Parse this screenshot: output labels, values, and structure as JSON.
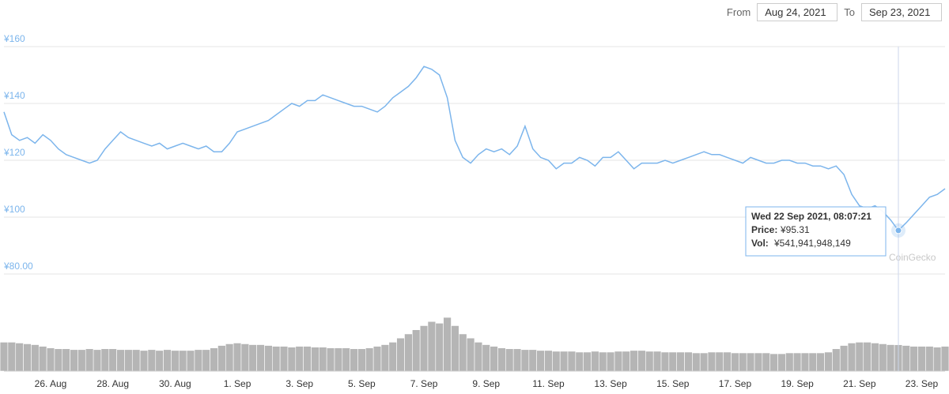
{
  "date_range": {
    "from_label": "From",
    "from": "Aug 24, 2021",
    "to_label": "To",
    "to": "Sep 23, 2021"
  },
  "chart_data": {
    "type": "line",
    "color": "#7cb5ec",
    "grid": true,
    "ylim": [
      80,
      160
    ],
    "yticks": [
      {
        "value": 80,
        "label": "¥80.00"
      },
      {
        "value": 100,
        "label": "¥100"
      },
      {
        "value": 120,
        "label": "¥120"
      },
      {
        "value": 140,
        "label": "¥140"
      },
      {
        "value": 160,
        "label": "¥160"
      }
    ],
    "categories": [
      null,
      null,
      null,
      null,
      null,
      null,
      "26. Aug",
      null,
      null,
      null,
      null,
      null,
      null,
      null,
      "28. Aug",
      null,
      null,
      null,
      null,
      null,
      null,
      null,
      "30. Aug",
      null,
      null,
      null,
      null,
      null,
      null,
      null,
      "1. Sep",
      null,
      null,
      null,
      null,
      null,
      null,
      null,
      "3. Sep",
      null,
      null,
      null,
      null,
      null,
      null,
      null,
      "5. Sep",
      null,
      null,
      null,
      null,
      null,
      null,
      null,
      "7. Sep",
      null,
      null,
      null,
      null,
      null,
      null,
      null,
      "9. Sep",
      null,
      null,
      null,
      null,
      null,
      null,
      null,
      "11. Sep",
      null,
      null,
      null,
      null,
      null,
      null,
      null,
      "13. Sep",
      null,
      null,
      null,
      null,
      null,
      null,
      null,
      "15. Sep",
      null,
      null,
      null,
      null,
      null,
      null,
      null,
      "17. Sep",
      null,
      null,
      null,
      null,
      null,
      null,
      null,
      "19. Sep",
      null,
      null,
      null,
      null,
      null,
      null,
      null,
      "21. Sep",
      null,
      null,
      null,
      null,
      null,
      null,
      null,
      "23. Sep",
      null,
      null,
      null
    ],
    "values": [
      137,
      129,
      127,
      128,
      126,
      129,
      127,
      124,
      122,
      121,
      120,
      119,
      120,
      124,
      127,
      130,
      128,
      127,
      126,
      125,
      126,
      124,
      125,
      126,
      125,
      124,
      125,
      123,
      123,
      126,
      130,
      131,
      132,
      133,
      134,
      136,
      138,
      140,
      139,
      141,
      141,
      143,
      142,
      141,
      140,
      139,
      139,
      138,
      137,
      139,
      142,
      144,
      146,
      149,
      153,
      152,
      150,
      142,
      127,
      121,
      119,
      122,
      124,
      123,
      124,
      122,
      125,
      132,
      124,
      121,
      120,
      117,
      119,
      119,
      121,
      120,
      118,
      121,
      121,
      123,
      120,
      117,
      119,
      119,
      119,
      120,
      119,
      120,
      121,
      122,
      123,
      122,
      122,
      121,
      120,
      119,
      121,
      120,
      119,
      119,
      120,
      120,
      119,
      119,
      118,
      118,
      117,
      118,
      115,
      108,
      104,
      103,
      104,
      102,
      99,
      95.31,
      98,
      101,
      104,
      107,
      108,
      110
    ],
    "volume": {
      "type": "bar",
      "color": "#b5b5b5",
      "values": [
        595000000000,
        595000000000,
        578000000000,
        561000000000,
        544000000000,
        510000000000,
        476000000000,
        459000000000,
        459000000000,
        442000000000,
        442000000000,
        459000000000,
        442000000000,
        459000000000,
        459000000000,
        442000000000,
        442000000000,
        442000000000,
        425000000000,
        442000000000,
        425000000000,
        442000000000,
        425000000000,
        425000000000,
        425000000000,
        442000000000,
        442000000000,
        476000000000,
        527000000000,
        561000000000,
        578000000000,
        561000000000,
        544000000000,
        544000000000,
        527000000000,
        510000000000,
        510000000000,
        493000000000,
        510000000000,
        510000000000,
        493000000000,
        493000000000,
        476000000000,
        476000000000,
        476000000000,
        459000000000,
        459000000000,
        476000000000,
        510000000000,
        544000000000,
        595000000000,
        680000000000,
        765000000000,
        850000000000,
        935000000000,
        1020000000000,
        986000000000,
        1105000000000,
        935000000000,
        765000000000,
        680000000000,
        595000000000,
        544000000000,
        510000000000,
        476000000000,
        459000000000,
        459000000000,
        442000000000,
        442000000000,
        425000000000,
        425000000000,
        408000000000,
        408000000000,
        408000000000,
        391000000000,
        391000000000,
        408000000000,
        391000000000,
        391000000000,
        408000000000,
        408000000000,
        425000000000,
        425000000000,
        408000000000,
        408000000000,
        391000000000,
        391000000000,
        391000000000,
        391000000000,
        374000000000,
        374000000000,
        391000000000,
        391000000000,
        391000000000,
        374000000000,
        374000000000,
        374000000000,
        374000000000,
        374000000000,
        357000000000,
        357000000000,
        374000000000,
        374000000000,
        374000000000,
        374000000000,
        374000000000,
        391000000000,
        459000000000,
        527000000000,
        578000000000,
        595000000000,
        595000000000,
        578000000000,
        561000000000,
        544000000000,
        541941948149,
        527000000000,
        510000000000,
        510000000000,
        510000000000,
        493000000000,
        510000000000
      ]
    },
    "tooltip": {
      "title": "Wed 22 Sep 2021, 08:07:21",
      "price_label": "Price:",
      "price": {
        "value": 95.31,
        "label": "¥95.31"
      },
      "volume_label": "Vol:",
      "volume": {
        "value": 541941948149,
        "label": "¥541,941,948,149"
      }
    },
    "watermark": "CoinGecko"
  }
}
